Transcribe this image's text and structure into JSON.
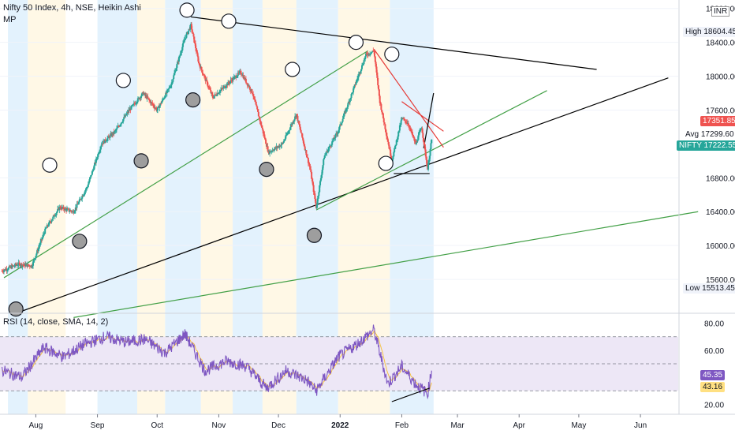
{
  "header": {
    "symbol_line": "Nifty 50 Index, 4h, NSE, Heikin Ashi",
    "sub_label": "MP",
    "currency": "INR"
  },
  "rsi_header": "RSI (14, close, SMA, 14, 2)",
  "colors": {
    "up": "#26a69a",
    "down": "#ef5350",
    "rsi": "#7e57c2",
    "rsi_ma": "#f5c242",
    "band_blue": "#e3f2fd",
    "band_cream": "#fff8e6",
    "rsi_zone": "#ede7f6",
    "trend_black": "#000000",
    "trend_green": "#43a047",
    "trend_red": "#e53935",
    "nifty_tag": "#26a69a",
    "rsi_tag": "#7e57c2",
    "rsi_ma_tag": "#ffe082"
  },
  "chart_data": {
    "type": "candlestick",
    "price_axis": {
      "ticks": [
        "18800.00",
        "18400.00",
        "18000.00",
        "17600.00",
        "16800.00",
        "16400.00",
        "16000.00",
        "15600.00"
      ],
      "tick_values": [
        18800,
        18400,
        18000,
        17600,
        16800,
        16400,
        16000,
        15600
      ],
      "range": [
        15200,
        18900
      ]
    },
    "time_axis": {
      "labels": [
        "Aug",
        "Sep",
        "Oct",
        "Nov",
        "Dec",
        "2022",
        "Feb",
        "Mar",
        "Apr",
        "May",
        "Jun"
      ],
      "months": [
        "2021-08",
        "2021-09",
        "2021-10",
        "2021-11",
        "2021-12",
        "2022-01",
        "2022-02",
        "2022-03",
        "2022-04",
        "2022-05",
        "2022-06"
      ]
    },
    "price_path": [
      [
        "2021-07-15",
        15700
      ],
      [
        "2021-07-23",
        15780
      ],
      [
        "2021-07-30",
        15760
      ],
      [
        "2021-08-06",
        16200
      ],
      [
        "2021-08-13",
        16450
      ],
      [
        "2021-08-20",
        16400
      ],
      [
        "2021-08-27",
        16700
      ],
      [
        "2021-09-03",
        17200
      ],
      [
        "2021-09-10",
        17350
      ],
      [
        "2021-09-17",
        17600
      ],
      [
        "2021-09-24",
        17800
      ],
      [
        "2021-10-01",
        17600
      ],
      [
        "2021-10-08",
        17900
      ],
      [
        "2021-10-15",
        18450
      ],
      [
        "2021-10-18",
        18600
      ],
      [
        "2021-10-22",
        18150
      ],
      [
        "2021-10-29",
        17750
      ],
      [
        "2021-11-05",
        17900
      ],
      [
        "2021-11-12",
        18050
      ],
      [
        "2021-11-18",
        17800
      ],
      [
        "2021-11-26",
        17100
      ],
      [
        "2021-12-03",
        17200
      ],
      [
        "2021-12-10",
        17550
      ],
      [
        "2021-12-17",
        16900
      ],
      [
        "2021-12-20",
        16450
      ],
      [
        "2021-12-24",
        17050
      ],
      [
        "2021-12-31",
        17350
      ],
      [
        "2022-01-07",
        17800
      ],
      [
        "2022-01-14",
        18250
      ],
      [
        "2022-01-18",
        18300
      ],
      [
        "2022-01-21",
        17700
      ],
      [
        "2022-01-27",
        17000
      ],
      [
        "2022-02-01",
        17500
      ],
      [
        "2022-02-04",
        17450
      ],
      [
        "2022-02-08",
        17200
      ],
      [
        "2022-02-11",
        17400
      ],
      [
        "2022-02-14",
        16900
      ],
      [
        "2022-02-16",
        17250
      ]
    ],
    "rsi": {
      "ticks": [
        "80.00",
        "60.00",
        "20.00"
      ],
      "tick_values": [
        80,
        60,
        20
      ],
      "range": [
        15,
        85
      ],
      "band": [
        30,
        70
      ],
      "midline": 50,
      "path": [
        [
          "2021-07-15",
          45
        ],
        [
          "2021-07-25",
          40
        ],
        [
          "2021-08-05",
          62
        ],
        [
          "2021-08-15",
          55
        ],
        [
          "2021-08-25",
          64
        ],
        [
          "2021-09-05",
          70
        ],
        [
          "2021-09-15",
          66
        ],
        [
          "2021-09-25",
          68
        ],
        [
          "2021-10-05",
          58
        ],
        [
          "2021-10-15",
          72
        ],
        [
          "2021-10-25",
          45
        ],
        [
          "2021-11-05",
          52
        ],
        [
          "2021-11-15",
          48
        ],
        [
          "2021-11-25",
          32
        ],
        [
          "2021-12-05",
          45
        ],
        [
          "2021-12-15",
          38
        ],
        [
          "2021-12-20",
          30
        ],
        [
          "2021-12-31",
          55
        ],
        [
          "2022-01-10",
          65
        ],
        [
          "2022-01-18",
          75
        ],
        [
          "2022-01-25",
          35
        ],
        [
          "2022-02-01",
          48
        ],
        [
          "2022-02-08",
          35
        ],
        [
          "2022-02-14",
          28
        ],
        [
          "2022-02-16",
          45
        ]
      ]
    },
    "tags": {
      "high_label": "High",
      "high_value": "18604.45",
      "last_upper_value": "17351.85",
      "avg_label": "Avg",
      "avg_value": "17299.60",
      "symbol": "NIFTY",
      "last_value": "17222.55",
      "low_label": "Low",
      "low_value": "15513.45",
      "rsi_value": "45.35",
      "rsi_ma_value": "43.16"
    },
    "time_bands": [
      [
        "2021-07-18",
        "2021-07-28",
        "blue"
      ],
      [
        "2021-07-28",
        "2021-08-16",
        "cream"
      ],
      [
        "2021-09-01",
        "2021-09-21",
        "blue"
      ],
      [
        "2021-09-21",
        "2021-10-05",
        "cream"
      ],
      [
        "2021-10-05",
        "2021-10-23",
        "blue"
      ],
      [
        "2021-10-23",
        "2021-11-08",
        "cream"
      ],
      [
        "2021-11-08",
        "2021-11-23",
        "blue"
      ],
      [
        "2021-11-23",
        "2021-12-10",
        "cream"
      ],
      [
        "2021-12-10",
        "2021-12-31",
        "blue"
      ],
      [
        "2021-12-31",
        "2022-01-14",
        "cream"
      ],
      [
        "2022-01-26",
        "2022-02-17",
        "blue"
      ],
      [
        "2022-01-14",
        "2022-01-26",
        "cream"
      ]
    ],
    "trendlines": [
      {
        "color": "black",
        "from": [
          "2021-10-18",
          18700
        ],
        "to": [
          "2022-05-10",
          18080
        ]
      },
      {
        "color": "black",
        "from": [
          "2021-07-22",
          15200
        ],
        "to": [
          "2022-06-15",
          17980
        ]
      },
      {
        "color": "green",
        "from": [
          "2021-07-16",
          15620
        ],
        "to": [
          "2022-01-15",
          18300
        ]
      },
      {
        "color": "green",
        "from": [
          "2021-12-20",
          16420
        ],
        "to": [
          "2022-04-15",
          17830
        ]
      },
      {
        "color": "green",
        "from": [
          "2021-08-20",
          15150
        ],
        "to": [
          "2022-06-30",
          16400
        ]
      },
      {
        "color": "red",
        "from": [
          "2022-01-18",
          18320
        ],
        "to": [
          "2022-02-22",
          17160
        ]
      },
      {
        "color": "red",
        "from": [
          "2022-02-01",
          17700
        ],
        "to": [
          "2022-02-22",
          17350
        ]
      },
      {
        "color": "black",
        "from": [
          "2022-01-28",
          16850
        ],
        "to": [
          "2022-02-15",
          16850
        ]
      },
      {
        "color": "black",
        "from": [
          "2022-02-12",
          17150
        ],
        "to": [
          "2022-02-17",
          17800
        ]
      }
    ],
    "markers": [
      {
        "at": [
          "2021-08-08",
          16950
        ],
        "fill": "white"
      },
      {
        "at": [
          "2021-08-23",
          16050
        ],
        "fill": "gray"
      },
      {
        "at": [
          "2021-09-14",
          17950
        ],
        "fill": "white"
      },
      {
        "at": [
          "2021-09-23",
          17000
        ],
        "fill": "gray"
      },
      {
        "at": [
          "2021-10-16",
          18780
        ],
        "fill": "white"
      },
      {
        "at": [
          "2021-10-19",
          17720
        ],
        "fill": "gray"
      },
      {
        "at": [
          "2021-11-06",
          18650
        ],
        "fill": "white"
      },
      {
        "at": [
          "2021-11-25",
          16900
        ],
        "fill": "gray"
      },
      {
        "at": [
          "2021-12-08",
          18080
        ],
        "fill": "white"
      },
      {
        "at": [
          "2021-12-19",
          16120
        ],
        "fill": "gray"
      },
      {
        "at": [
          "2022-01-09",
          18400
        ],
        "fill": "white"
      },
      {
        "at": [
          "2022-01-24",
          16970
        ],
        "fill": "white"
      },
      {
        "at": [
          "2022-01-27",
          18260
        ],
        "fill": "white"
      },
      {
        "at": [
          "2021-07-22",
          15250
        ],
        "fill": "gray"
      }
    ],
    "rsi_trendline": {
      "from": [
        "2022-01-27",
        22
      ],
      "to": [
        "2022-02-15",
        32
      ]
    }
  }
}
